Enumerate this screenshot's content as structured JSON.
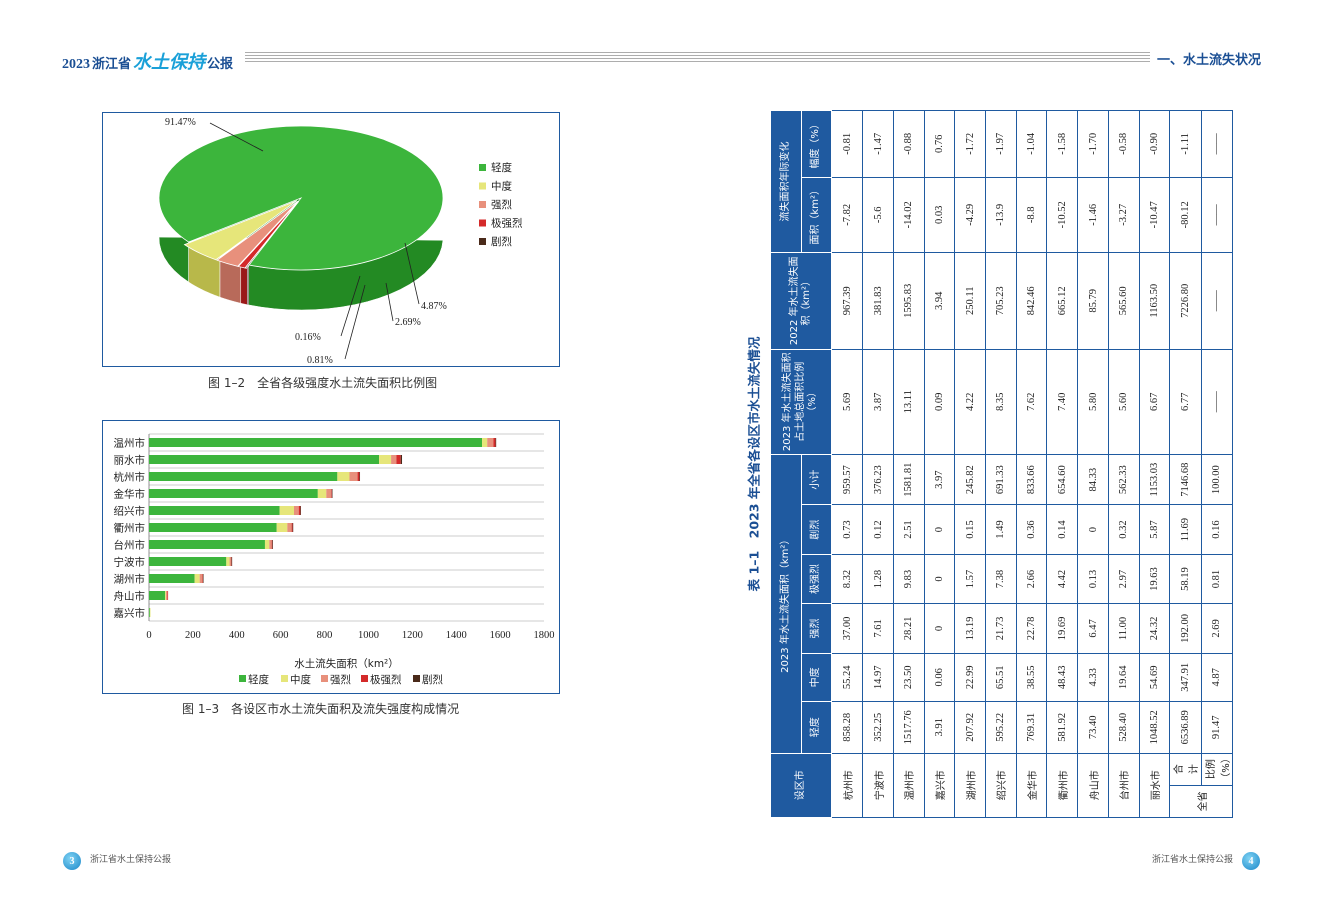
{
  "header": {
    "year": "2023",
    "province": "浙江省",
    "brand": "水土保持",
    "report": "公报",
    "section": "一、水土流失状况"
  },
  "footer": {
    "left_page": "3",
    "right_page": "4",
    "publication": "浙江省水土保持公报"
  },
  "figure_1_2": {
    "caption": "图 1–2　全省各级强度水土流失面积比例图",
    "labels": [
      "91.47%",
      "4.87%",
      "2.69%",
      "0.16%",
      "0.81%"
    ]
  },
  "figure_1_3": {
    "caption": "图 1–3　各设区市水土流失面积及流失强度构成情况"
  },
  "chart_data": [
    {
      "type": "pie",
      "title": "全省各级强度水土流失面积比例图",
      "categories": [
        "轻度",
        "中度",
        "强烈",
        "极强烈",
        "剧烈"
      ],
      "values": [
        91.47,
        4.87,
        2.69,
        0.81,
        0.16
      ],
      "colors": [
        "#3cb53c",
        "#e6e67a",
        "#e8907c",
        "#d42a2a",
        "#4a2a1a"
      ],
      "legend_position": "right"
    },
    {
      "type": "bar",
      "orientation": "horizontal-stacked",
      "title": "各设区市水土流失面积及流失强度构成情况",
      "categories": [
        "温州市",
        "丽水市",
        "杭州市",
        "金华市",
        "绍兴市",
        "衢州市",
        "台州市",
        "宁波市",
        "湖州市",
        "舟山市",
        "嘉兴市"
      ],
      "series": [
        {
          "name": "轻度",
          "values": [
            1517.76,
            1048.52,
            858.28,
            769.31,
            595.22,
            581.92,
            528.4,
            352.25,
            207.92,
            73.4,
            3.91
          ],
          "color": "#3cb53c"
        },
        {
          "name": "中度",
          "values": [
            23.5,
            54.69,
            55.24,
            38.55,
            65.51,
            48.43,
            19.64,
            14.97,
            22.99,
            4.33,
            0.06
          ],
          "color": "#e6e67a"
        },
        {
          "name": "强烈",
          "values": [
            28.21,
            24.32,
            37.0,
            22.78,
            21.73,
            19.69,
            11.0,
            7.61,
            13.19,
            6.47,
            0
          ],
          "color": "#e8907c"
        },
        {
          "name": "极强烈",
          "values": [
            9.83,
            19.63,
            8.32,
            2.66,
            7.38,
            4.42,
            2.97,
            1.28,
            1.57,
            0.13,
            0
          ],
          "color": "#d42a2a"
        },
        {
          "name": "剧烈",
          "values": [
            2.51,
            5.87,
            0.73,
            0.36,
            1.49,
            0.14,
            0.32,
            0.12,
            0.15,
            0,
            0
          ],
          "color": "#4a2a1a"
        }
      ],
      "xlabel": "水土流失面积（km²）",
      "xlim": [
        0,
        1800
      ],
      "xticks": [
        0,
        200,
        400,
        600,
        800,
        1000,
        1200,
        1400,
        1600,
        1800
      ],
      "legend_position": "bottom",
      "grid": true
    }
  ],
  "table_1_1": {
    "title": "表 1–1　2023 年全省各设区市水土流失情况",
    "h_city": "设区市",
    "h_area2023": "2023 年水土流失面积（km²）",
    "h_sub": [
      "轻度",
      "中度",
      "强烈",
      "极强烈",
      "剧烈",
      "小计"
    ],
    "h_ratio": "2023 年水土流失面积占土地总面积比例（%）",
    "h_area2022": "2022 年水土流失面积（km²）",
    "h_change": "流失面积年际变化",
    "h_change_area": "面积（km²）",
    "h_change_pct": "幅度（%）",
    "rows": [
      {
        "city": "杭州市",
        "v": [
          "858.28",
          "55.24",
          "37.00",
          "8.32",
          "0.73",
          "959.57",
          "5.69",
          "967.39",
          "-7.82",
          "-0.81"
        ]
      },
      {
        "city": "宁波市",
        "v": [
          "352.25",
          "14.97",
          "7.61",
          "1.28",
          "0.12",
          "376.23",
          "3.87",
          "381.83",
          "-5.6",
          "-1.47"
        ]
      },
      {
        "city": "温州市",
        "v": [
          "1517.76",
          "23.50",
          "28.21",
          "9.83",
          "2.51",
          "1581.81",
          "13.11",
          "1595.83",
          "-14.02",
          "-0.88"
        ]
      },
      {
        "city": "嘉兴市",
        "v": [
          "3.91",
          "0.06",
          "0",
          "0",
          "0",
          "3.97",
          "0.09",
          "3.94",
          "0.03",
          "0.76"
        ]
      },
      {
        "city": "湖州市",
        "v": [
          "207.92",
          "22.99",
          "13.19",
          "1.57",
          "0.15",
          "245.82",
          "4.22",
          "250.11",
          "-4.29",
          "-1.72"
        ]
      },
      {
        "city": "绍兴市",
        "v": [
          "595.22",
          "65.51",
          "21.73",
          "7.38",
          "1.49",
          "691.33",
          "8.35",
          "705.23",
          "-13.9",
          "-1.97"
        ]
      },
      {
        "city": "金华市",
        "v": [
          "769.31",
          "38.55",
          "22.78",
          "2.66",
          "0.36",
          "833.66",
          "7.62",
          "842.46",
          "-8.8",
          "-1.04"
        ]
      },
      {
        "city": "衢州市",
        "v": [
          "581.92",
          "48.43",
          "19.69",
          "4.42",
          "0.14",
          "654.60",
          "7.40",
          "665.12",
          "-10.52",
          "-1.58"
        ]
      },
      {
        "city": "舟山市",
        "v": [
          "73.40",
          "4.33",
          "6.47",
          "0.13",
          "0",
          "84.33",
          "5.80",
          "85.79",
          "-1.46",
          "-1.70"
        ]
      },
      {
        "city": "台州市",
        "v": [
          "528.40",
          "19.64",
          "11.00",
          "2.97",
          "0.32",
          "562.33",
          "5.60",
          "565.60",
          "-3.27",
          "-0.58"
        ]
      },
      {
        "city": "丽水市",
        "v": [
          "1048.52",
          "54.69",
          "24.32",
          "19.63",
          "5.87",
          "1153.03",
          "6.67",
          "1163.50",
          "-10.47",
          "-0.90"
        ]
      }
    ],
    "province": "全省",
    "total_label": "合　计",
    "ratio_label": "比例（%）",
    "total": [
      "6536.89",
      "347.91",
      "192.00",
      "58.19",
      "11.69",
      "7146.68",
      "6.77",
      "7226.80",
      "-80.12",
      "-1.11"
    ],
    "ratio": [
      "91.47",
      "4.87",
      "2.69",
      "0.81",
      "0.16",
      "100.00"
    ],
    "dash": "——"
  }
}
